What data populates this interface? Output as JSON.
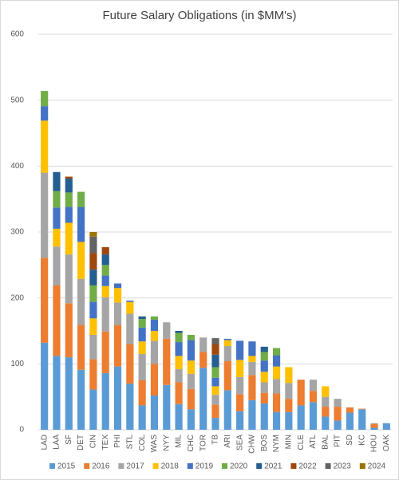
{
  "chart_data": {
    "type": "stacked_bar",
    "title": "Future Salary Obligations (in $MM's)",
    "categories": [
      "LAD",
      "LAA",
      "SF",
      "DET",
      "CIN",
      "TEX",
      "PHI",
      "STL",
      "COL",
      "WAS",
      "NYY",
      "MIL",
      "CHC",
      "TOR",
      "TB",
      "ARI",
      "SEA",
      "CHW",
      "BOS",
      "NYM",
      "MIN",
      "CLE",
      "ATL",
      "BAL",
      "PIT",
      "SD",
      "KC",
      "HOU",
      "OAK"
    ],
    "series": [
      {
        "name": "2015",
        "color": "#5b9bd5",
        "values": [
          132,
          112,
          110,
          91,
          61,
          86,
          96,
          70,
          37,
          52,
          68,
          39,
          31,
          94,
          18,
          60,
          28,
          45,
          40,
          27,
          27,
          37,
          42,
          20,
          14,
          26,
          31,
          3,
          10
        ]
      },
      {
        "name": "2016",
        "color": "#ed7d31",
        "values": [
          129,
          107,
          82,
          68,
          46,
          63,
          63,
          60,
          38,
          48,
          70,
          33,
          31,
          24,
          20,
          44,
          26,
          38,
          16,
          28,
          20,
          39,
          17,
          15,
          21,
          8,
          1,
          6,
          null
        ]
      },
      {
        "name": "2017",
        "color": "#a5a5a5",
        "values": [
          129,
          59,
          74,
          70,
          37,
          52,
          34,
          46,
          40,
          35,
          25,
          20,
          23,
          22,
          15,
          23,
          26,
          20,
          16,
          22,
          24,
          null,
          17,
          15,
          12,
          null,
          null,
          1,
          null
        ]
      },
      {
        "name": "2018",
        "color": "#ffc000",
        "values": [
          79,
          27,
          48,
          56,
          25,
          17,
          22,
          18,
          19,
          15,
          null,
          20,
          20,
          null,
          13,
          9,
          26,
          9,
          16,
          19,
          24,
          null,
          null,
          16,
          null,
          null,
          null,
          null,
          null
        ]
      },
      {
        "name": "2019",
        "color": "#4472c4",
        "values": [
          22,
          32,
          24,
          53,
          25,
          16,
          7,
          2,
          21,
          17,
          null,
          21,
          31,
          null,
          13,
          2,
          29,
          22,
          17,
          17,
          null,
          null,
          null,
          null,
          null,
          null,
          null,
          null,
          null
        ]
      },
      {
        "name": "2020",
        "color": "#70ad47",
        "values": [
          23,
          25,
          22,
          23,
          25,
          16,
          null,
          null,
          13,
          5,
          null,
          14,
          8,
          null,
          16,
          null,
          null,
          null,
          13,
          11,
          null,
          null,
          null,
          null,
          null,
          null,
          null,
          null,
          null
        ]
      },
      {
        "name": "2021",
        "color": "#255e91",
        "values": [
          null,
          29,
          21,
          null,
          24,
          16,
          null,
          null,
          4,
          null,
          null,
          3,
          null,
          null,
          19,
          null,
          null,
          null,
          8,
          null,
          null,
          null,
          null,
          null,
          null,
          null,
          null,
          null,
          null
        ]
      },
      {
        "name": "2022",
        "color": "#9e480e",
        "values": [
          null,
          null,
          3,
          null,
          25,
          11,
          null,
          null,
          null,
          null,
          null,
          null,
          null,
          null,
          16,
          null,
          null,
          null,
          null,
          null,
          null,
          null,
          null,
          null,
          null,
          null,
          null,
          null,
          null
        ]
      },
      {
        "name": "2023",
        "color": "#636363",
        "values": [
          null,
          null,
          null,
          null,
          25,
          null,
          null,
          null,
          null,
          null,
          null,
          null,
          null,
          null,
          9,
          null,
          null,
          null,
          null,
          null,
          null,
          null,
          null,
          null,
          null,
          null,
          null,
          null,
          null
        ]
      },
      {
        "name": "2024",
        "color": "#997300",
        "values": [
          null,
          null,
          null,
          null,
          7,
          null,
          null,
          null,
          null,
          null,
          null,
          null,
          null,
          null,
          null,
          null,
          null,
          null,
          null,
          null,
          null,
          null,
          null,
          null,
          null,
          null,
          null,
          null,
          null
        ]
      }
    ],
    "ylim": [
      0,
      600
    ],
    "yticks": [
      0,
      100,
      200,
      300,
      400,
      500,
      600
    ],
    "grid": true,
    "legend": "bottom"
  }
}
